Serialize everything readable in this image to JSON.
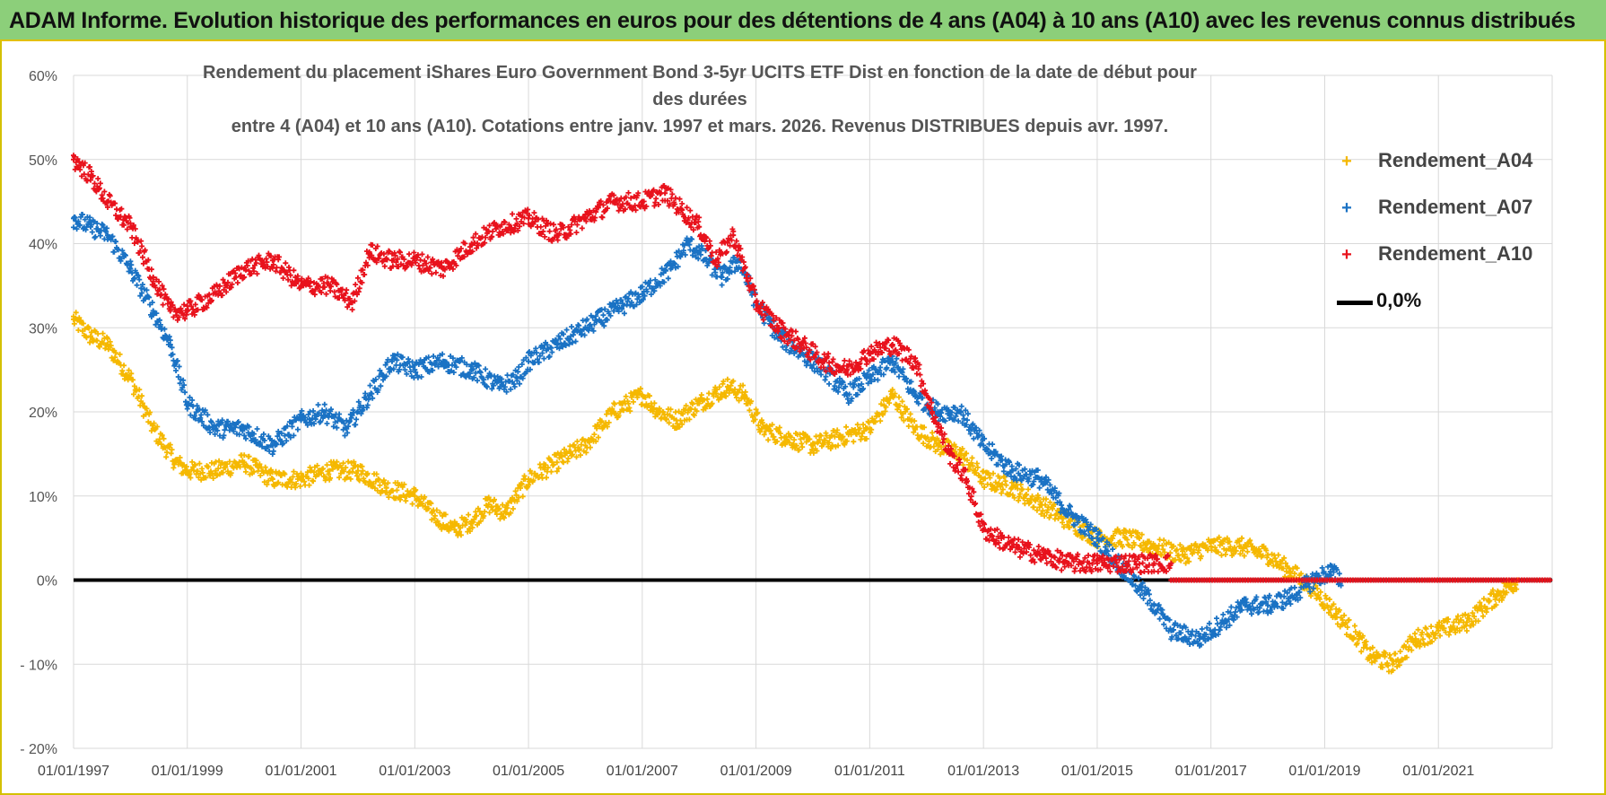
{
  "banner": {
    "title": "ADAM Informe. Evolution historique des performances en euros pour des détentions de 4 ans (A04) à 10 ans (A10) avec les revenus connus distribués"
  },
  "chart_data": {
    "type": "scatter",
    "title_line1": "Rendement du placement iShares Euro Government Bond 3-5yr UCITS ETF Dist en fonction de la date de début pour des durées",
    "title_line2": "entre 4 (A04) et 10 ans (A10). Cotations entre janv. 1997 et mars. 2026. Revenus DISTRIBUES depuis avr. 1997.",
    "xlabel": "",
    "ylabel": "",
    "xlim": [
      1997.0,
      2023.0
    ],
    "ylim": [
      -20,
      60
    ],
    "y_ticks": [
      60,
      50,
      40,
      30,
      20,
      10,
      0,
      -10,
      -20
    ],
    "y_tick_labels": [
      "60%",
      "50%",
      "40%",
      "30%",
      "20%",
      "10%",
      "0%",
      "- 10%",
      "- 20%"
    ],
    "x_ticks": [
      1997,
      1999,
      2001,
      2003,
      2005,
      2007,
      2009,
      2011,
      2013,
      2015,
      2017,
      2019,
      2021
    ],
    "x_tick_labels": [
      "01/01/1997",
      "01/01/1999",
      "01/01/2001",
      "01/01/2003",
      "01/01/2005",
      "01/01/2007",
      "01/01/2009",
      "01/01/2011",
      "01/01/2013",
      "01/01/2015",
      "01/01/2017",
      "01/01/2019",
      "01/01/2021"
    ],
    "grid": true,
    "legend_position": "top-right",
    "series": [
      {
        "name": "Rendement_A04",
        "color": "#f5b800",
        "x": [
          1997.0,
          1997.3,
          1997.6,
          1998.0,
          1998.4,
          1998.8,
          1999.0,
          1999.5,
          2000.0,
          2000.5,
          2001.0,
          2001.5,
          2002.0,
          2002.5,
          2003.0,
          2003.3,
          2003.7,
          2004.0,
          2004.3,
          2004.6,
          2005.0,
          2005.5,
          2006.0,
          2006.5,
          2007.0,
          2007.3,
          2007.6,
          2008.0,
          2008.5,
          2008.8,
          2009.1,
          2009.5,
          2010.0,
          2010.5,
          2011.0,
          2011.4,
          2011.8,
          2012.2,
          2012.6,
          2013.0,
          2013.5,
          2014.0,
          2014.5,
          2015.0,
          2015.5,
          2016.0,
          2016.5,
          2017.0,
          2017.5,
          2018.0,
          2018.4,
          2018.8,
          2019.2,
          2019.6,
          2019.8,
          2020.2,
          2020.6,
          2021.0,
          2021.5,
          2022.0,
          2022.4
        ],
        "values": [
          31,
          29,
          28,
          24,
          18,
          14,
          13,
          13,
          14,
          12,
          12,
          13,
          13,
          11,
          10,
          8,
          6,
          7,
          9,
          8,
          12,
          14,
          16,
          20,
          22,
          20,
          19,
          21,
          23,
          22,
          18,
          17,
          16,
          17,
          18,
          22,
          18,
          16,
          15,
          12,
          11,
          9,
          7,
          5,
          5,
          4,
          3,
          4,
          4,
          3,
          1,
          -1,
          -4,
          -7,
          -9,
          -10,
          -7,
          -6,
          -5,
          -2,
          0
        ]
      },
      {
        "name": "Rendement_A07",
        "color": "#1a72c4",
        "x": [
          1997.0,
          1997.3,
          1997.6,
          1998.0,
          1998.4,
          1998.7,
          1999.0,
          1999.5,
          2000.0,
          2000.5,
          2001.0,
          2001.4,
          2001.8,
          2002.2,
          2002.6,
          2003.0,
          2003.5,
          2004.0,
          2004.5,
          2004.8,
          2005.0,
          2005.5,
          2006.0,
          2006.5,
          2007.0,
          2007.5,
          2007.8,
          2008.0,
          2008.4,
          2008.7,
          2009.0,
          2009.4,
          2009.8,
          2010.2,
          2010.6,
          2011.0,
          2011.4,
          2011.8,
          2012.2,
          2012.6,
          2013.0,
          2013.5,
          2014.0,
          2014.5,
          2015.0,
          2015.5,
          2016.0,
          2016.3,
          2016.8,
          2017.2,
          2017.6,
          2018.0,
          2018.4,
          2018.8,
          2019.1,
          2019.3
        ],
        "values": [
          43,
          42,
          41,
          37,
          32,
          28,
          21,
          18,
          18,
          16,
          19,
          20,
          18,
          22,
          26,
          25,
          26,
          25,
          23,
          24,
          26,
          28,
          30,
          32,
          34,
          37,
          40,
          39,
          36,
          38,
          33,
          29,
          27,
          25,
          22,
          24,
          26,
          22,
          20,
          20,
          16,
          13,
          12,
          8,
          5,
          1,
          -3,
          -6,
          -7,
          -5,
          -3,
          -3,
          -2,
          0,
          1,
          0
        ]
      },
      {
        "name": "Rendement_A10",
        "color": "#e8121c",
        "x": [
          1997.0,
          1997.3,
          1997.6,
          1998.0,
          1998.4,
          1998.7,
          1999.0,
          1999.5,
          2000.0,
          2000.5,
          2001.0,
          2001.5,
          2001.9,
          2002.2,
          2002.6,
          2003.0,
          2003.5,
          2004.0,
          2004.5,
          2005.0,
          2005.5,
          2006.0,
          2006.5,
          2007.0,
          2007.4,
          2007.7,
          2008.0,
          2008.3,
          2008.6,
          2009.0,
          2009.4,
          2009.8,
          2010.2,
          2010.6,
          2011.0,
          2011.4,
          2011.8,
          2012.1,
          2012.4,
          2012.7,
          2013.0,
          2013.5,
          2014.0,
          2014.5,
          2015.0,
          2015.5,
          2016.0,
          2016.3
        ],
        "values": [
          50,
          48,
          45,
          42,
          36,
          32,
          32,
          34,
          37,
          38,
          35,
          35,
          33,
          39,
          38,
          38,
          37,
          40,
          42,
          43,
          41,
          43,
          45,
          45,
          46,
          44,
          42,
          38,
          41,
          33,
          30,
          28,
          26,
          25,
          27,
          28,
          26,
          20,
          15,
          12,
          6,
          4,
          3,
          2,
          2,
          2,
          2,
          2
        ]
      },
      {
        "name": "0,0%",
        "color": "#000000",
        "x": [
          1997.0,
          2023.0
        ],
        "values": [
          0,
          0
        ]
      }
    ]
  }
}
